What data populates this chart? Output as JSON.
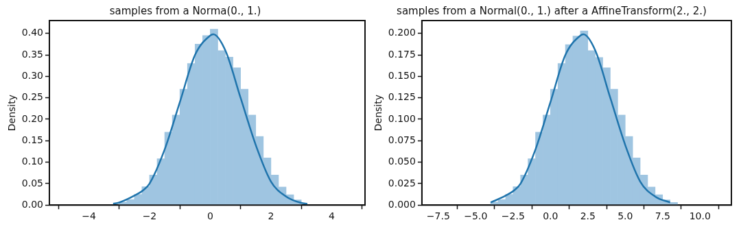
{
  "chart_data": [
    {
      "type": "histogram",
      "title": "samples from a Norma(0., 1.)",
      "ylabel": "Density",
      "color": "#9fc5e1",
      "bins": [
        -3,
        -2.75,
        -2.5,
        -2.25,
        -2,
        -1.75,
        -1.5,
        -1.25,
        -1,
        -0.75,
        -0.5,
        -0.25,
        0,
        0.25,
        0.5,
        0.75,
        1,
        1.25,
        1.5,
        1.75,
        2,
        2.25,
        2.5,
        2.75,
        3
      ],
      "values": [
        0.007,
        0.013,
        0.025,
        0.043,
        0.07,
        0.108,
        0.17,
        0.21,
        0.27,
        0.33,
        0.375,
        0.395,
        0.41,
        0.36,
        0.345,
        0.32,
        0.27,
        0.21,
        0.16,
        0.11,
        0.07,
        0.042,
        0.024,
        0.012
      ],
      "series": [
        {
          "type": "line",
          "color": "#1f74ac",
          "x": [
            -3.2,
            -3,
            -2.5,
            -2.2,
            -2,
            -1.5,
            -1,
            -0.5,
            0,
            0.1,
            0.5,
            1,
            1.5,
            2,
            2.5,
            3,
            3.2
          ],
          "values": [
            0.003,
            0.006,
            0.022,
            0.035,
            0.05,
            0.13,
            0.24,
            0.35,
            0.395,
            0.398,
            0.36,
            0.25,
            0.14,
            0.055,
            0.02,
            0.005,
            0.003
          ]
        }
      ],
      "xlim": [
        -5.3,
        5.1
      ],
      "ylim": [
        0,
        0.43
      ],
      "xticks": [
        {
          "value": -4,
          "label": "−4"
        },
        {
          "value": -2,
          "label": "−2"
        },
        0,
        2,
        4
      ],
      "yticks": [
        {
          "value": 0,
          "label": "0.00"
        },
        {
          "value": 0.05,
          "label": "0.05"
        },
        {
          "value": 0.1,
          "label": "0.10"
        },
        {
          "value": 0.15,
          "label": "0.15"
        },
        {
          "value": 0.2,
          "label": "0.20"
        },
        {
          "value": 0.25,
          "label": "0.25"
        },
        {
          "value": 0.3,
          "label": "0.30"
        },
        {
          "value": 0.35,
          "label": "0.35"
        },
        {
          "value": 0.4,
          "label": "0.40"
        }
      ],
      "grid": false,
      "legend": false
    },
    {
      "type": "histogram",
      "title": "samples from a Normal(0., 1.) after a AffineTransform(2., 2.)",
      "ylabel": "Density",
      "color": "#9fc5e1",
      "bins": [
        -4,
        -3.5,
        -3,
        -2.5,
        -2,
        -1.5,
        -1,
        -0.5,
        0,
        0.5,
        1,
        1.5,
        2,
        2.5,
        3,
        3.5,
        4,
        4.5,
        5,
        5.5,
        6,
        6.5,
        7,
        7.5,
        8,
        8.5
      ],
      "values": [
        0.0035,
        0.0065,
        0.0125,
        0.0215,
        0.035,
        0.054,
        0.085,
        0.105,
        0.135,
        0.165,
        0.187,
        0.197,
        0.203,
        0.18,
        0.172,
        0.16,
        0.135,
        0.105,
        0.08,
        0.055,
        0.035,
        0.021,
        0.012,
        0.006,
        0.003
      ],
      "series": [
        {
          "type": "line",
          "color": "#1f74ac",
          "x": [
            -4,
            -3,
            -2.4,
            -2,
            -1,
            0,
            1,
            2,
            2.2,
            3,
            4,
            5,
            6,
            7,
            8
          ],
          "values": [
            0.003,
            0.011,
            0.0175,
            0.025,
            0.065,
            0.12,
            0.175,
            0.1975,
            0.199,
            0.18,
            0.125,
            0.07,
            0.0275,
            0.01,
            0.003
          ]
        }
      ],
      "xlim": [
        -8.6,
        12.1
      ],
      "ylim": [
        0,
        0.215
      ],
      "xticks": [
        {
          "value": -7.5,
          "label": "−7.5"
        },
        {
          "value": -5,
          "label": "−5.0"
        },
        {
          "value": -2.5,
          "label": "−2.5"
        },
        {
          "value": 0,
          "label": "0.0"
        },
        2.5,
        {
          "value": 5,
          "label": "5.0"
        },
        7.5,
        {
          "value": 10,
          "label": "10.0"
        }
      ],
      "yticks": [
        {
          "value": 0,
          "label": "0.000"
        },
        0.025,
        {
          "value": 0.05,
          "label": "0.050"
        },
        {
          "value": 0.075,
          "label": "0.075"
        },
        {
          "value": 0.1,
          "label": "0.100"
        },
        {
          "value": 0.125,
          "label": "0.125"
        },
        {
          "value": 0.15,
          "label": "0.150"
        },
        {
          "value": 0.175,
          "label": "0.175"
        },
        {
          "value": 0.2,
          "label": "0.200"
        }
      ],
      "grid": false,
      "legend": false
    }
  ]
}
